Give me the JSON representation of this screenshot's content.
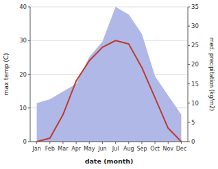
{
  "chart_data": {
    "type": "line",
    "xlabel": "date (month)",
    "ylabel": "max temp (C)",
    "y2label": "med. precipitation (kg/m2)",
    "categories": [
      "Jan",
      "Feb",
      "Mar",
      "Apr",
      "May",
      "Jun",
      "Jul",
      "Aug",
      "Sep",
      "Oct",
      "Nov",
      "Dec"
    ],
    "series": [
      {
        "type": "area",
        "axis": "y2",
        "color": "#b0b8e8",
        "values": [
          10,
          11,
          13,
          15,
          22,
          26,
          35,
          33,
          28,
          17,
          12,
          7
        ]
      },
      {
        "type": "line",
        "color": "#c0392b",
        "values": [
          0,
          1,
          8,
          18,
          24,
          28,
          30,
          29,
          22,
          13,
          4,
          0
        ]
      }
    ],
    "ylim": [
      0,
      40
    ],
    "yticks": [
      0,
      10,
      20,
      30,
      40
    ],
    "y2lim": [
      0,
      35
    ],
    "y2ticks": [
      0,
      5,
      10,
      15,
      20,
      25,
      30,
      35
    ],
    "grid": true
  }
}
